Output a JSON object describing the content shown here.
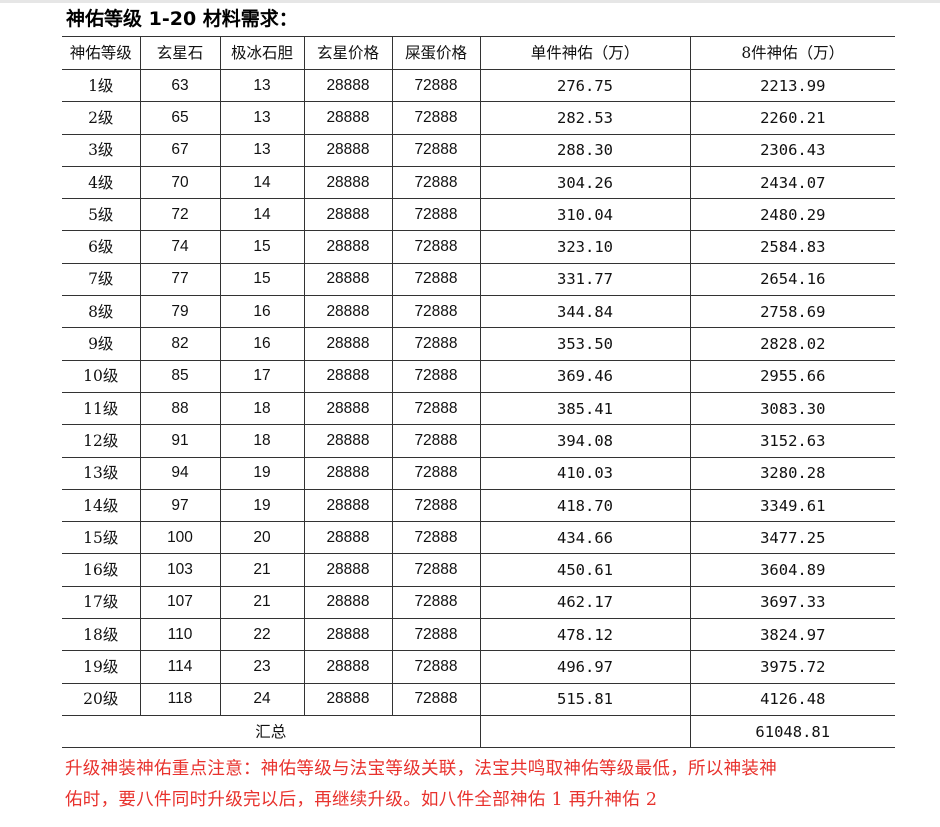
{
  "title": "神佑等级 1-20 材料需求：",
  "table": {
    "headers": [
      "神佑等级",
      "玄星石",
      "极冰石胆",
      "玄星价格",
      "屎蛋价格",
      "单件神佑（万）",
      "8件神佑（万）"
    ],
    "rows": [
      {
        "level": "1级",
        "xuanxing": "63",
        "bingdan": "13",
        "xx_price": "28888",
        "sd_price": "72888",
        "single": "276.75",
        "eight": "2213.99"
      },
      {
        "level": "2级",
        "xuanxing": "65",
        "bingdan": "13",
        "xx_price": "28888",
        "sd_price": "72888",
        "single": "282.53",
        "eight": "2260.21"
      },
      {
        "level": "3级",
        "xuanxing": "67",
        "bingdan": "13",
        "xx_price": "28888",
        "sd_price": "72888",
        "single": "288.30",
        "eight": "2306.43"
      },
      {
        "level": "4级",
        "xuanxing": "70",
        "bingdan": "14",
        "xx_price": "28888",
        "sd_price": "72888",
        "single": "304.26",
        "eight": "2434.07"
      },
      {
        "level": "5级",
        "xuanxing": "72",
        "bingdan": "14",
        "xx_price": "28888",
        "sd_price": "72888",
        "single": "310.04",
        "eight": "2480.29"
      },
      {
        "level": "6级",
        "xuanxing": "74",
        "bingdan": "15",
        "xx_price": "28888",
        "sd_price": "72888",
        "single": "323.10",
        "eight": "2584.83"
      },
      {
        "level": "7级",
        "xuanxing": "77",
        "bingdan": "15",
        "xx_price": "28888",
        "sd_price": "72888",
        "single": "331.77",
        "eight": "2654.16"
      },
      {
        "level": "8级",
        "xuanxing": "79",
        "bingdan": "16",
        "xx_price": "28888",
        "sd_price": "72888",
        "single": "344.84",
        "eight": "2758.69"
      },
      {
        "level": "9级",
        "xuanxing": "82",
        "bingdan": "16",
        "xx_price": "28888",
        "sd_price": "72888",
        "single": "353.50",
        "eight": "2828.02"
      },
      {
        "level": "10级",
        "xuanxing": "85",
        "bingdan": "17",
        "xx_price": "28888",
        "sd_price": "72888",
        "single": "369.46",
        "eight": "2955.66"
      },
      {
        "level": "11级",
        "xuanxing": "88",
        "bingdan": "18",
        "xx_price": "28888",
        "sd_price": "72888",
        "single": "385.41",
        "eight": "3083.30"
      },
      {
        "level": "12级",
        "xuanxing": "91",
        "bingdan": "18",
        "xx_price": "28888",
        "sd_price": "72888",
        "single": "394.08",
        "eight": "3152.63"
      },
      {
        "level": "13级",
        "xuanxing": "94",
        "bingdan": "19",
        "xx_price": "28888",
        "sd_price": "72888",
        "single": "410.03",
        "eight": "3280.28"
      },
      {
        "level": "14级",
        "xuanxing": "97",
        "bingdan": "19",
        "xx_price": "28888",
        "sd_price": "72888",
        "single": "418.70",
        "eight": "3349.61"
      },
      {
        "level": "15级",
        "xuanxing": "100",
        "bingdan": "20",
        "xx_price": "28888",
        "sd_price": "72888",
        "single": "434.66",
        "eight": "3477.25"
      },
      {
        "level": "16级",
        "xuanxing": "103",
        "bingdan": "21",
        "xx_price": "28888",
        "sd_price": "72888",
        "single": "450.61",
        "eight": "3604.89"
      },
      {
        "level": "17级",
        "xuanxing": "107",
        "bingdan": "21",
        "xx_price": "28888",
        "sd_price": "72888",
        "single": "462.17",
        "eight": "3697.33"
      },
      {
        "level": "18级",
        "xuanxing": "110",
        "bingdan": "22",
        "xx_price": "28888",
        "sd_price": "72888",
        "single": "478.12",
        "eight": "3824.97"
      },
      {
        "level": "19级",
        "xuanxing": "114",
        "bingdan": "23",
        "xx_price": "28888",
        "sd_price": "72888",
        "single": "496.97",
        "eight": "3975.72"
      },
      {
        "level": "20级",
        "xuanxing": "118",
        "bingdan": "24",
        "xx_price": "28888",
        "sd_price": "72888",
        "single": "515.81",
        "eight": "4126.48"
      }
    ],
    "total_label": "汇总",
    "total_value": "61048.81"
  },
  "note": {
    "line1": "升级神装神佑重点注意：神佑等级与法宝等级关联，法宝共鸣取神佑等级最低，所以神装神",
    "line2": "佑时，要八件同时升级完以后，再继续升级。如八件全部神佑 1 再升神佑 2",
    "color": "#e8322d"
  }
}
